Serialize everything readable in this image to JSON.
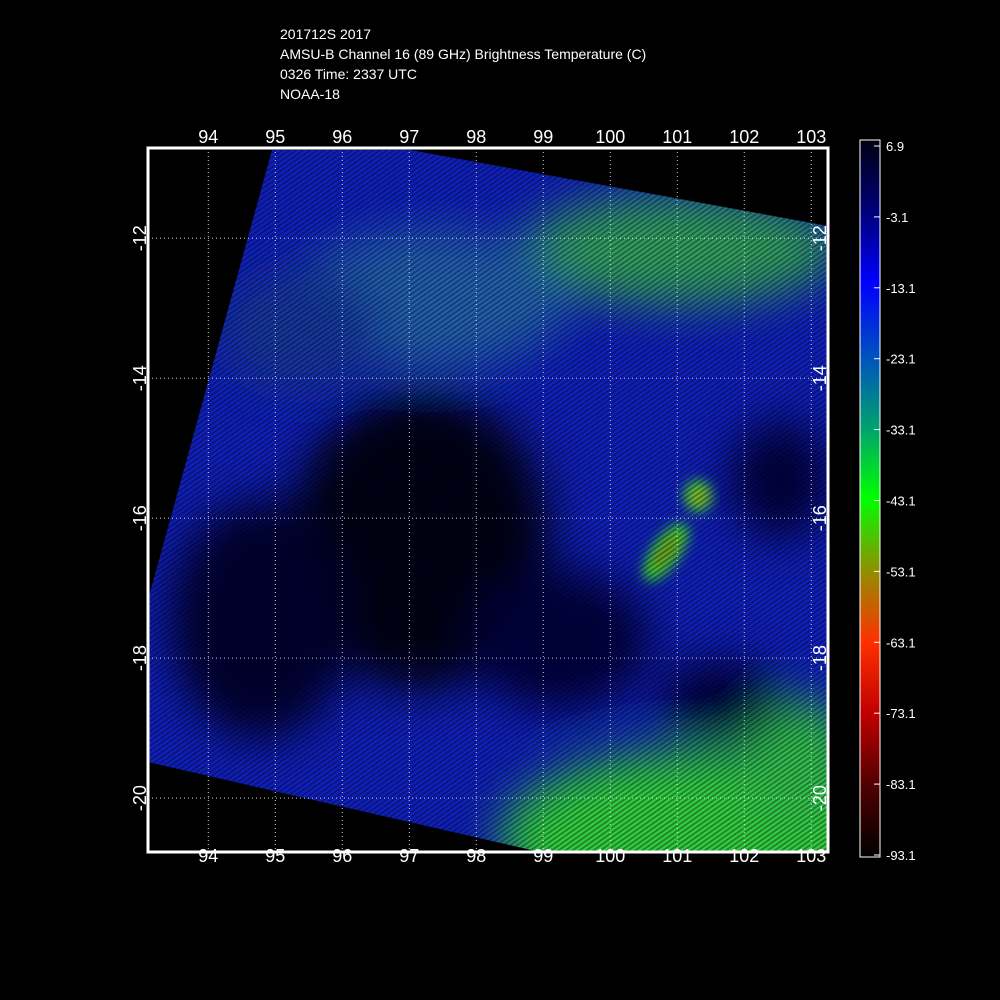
{
  "header": {
    "lines": [
      "201712S 2017",
      "AMSU-B Channel 16 (89 GHz) Brightness Temperature (C)",
      "0326 Time: 2337 UTC",
      "NOAA-18"
    ]
  },
  "map": {
    "xlim": [
      93.1,
      103.25
    ],
    "ylim": [
      -20.77,
      -10.71
    ],
    "xticks": [
      94,
      95,
      96,
      97,
      98,
      99,
      100,
      101,
      102,
      103
    ],
    "yticks": [
      -12,
      -14,
      -16,
      -18,
      -20
    ],
    "grid": true
  },
  "colorbar": {
    "lim": [
      -93.1,
      6.9
    ],
    "ticks": [
      6.9,
      -3.1,
      -13.1,
      -23.1,
      -33.1,
      -43.1,
      -53.1,
      -63.1,
      -73.1,
      -83.1,
      -93.1
    ]
  }
}
